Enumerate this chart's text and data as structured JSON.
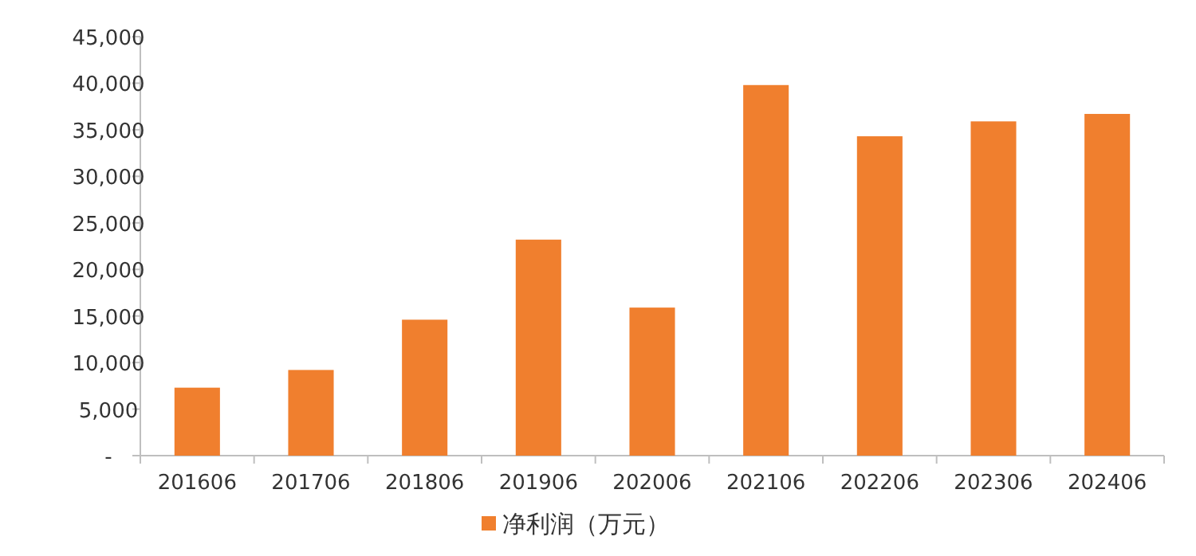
{
  "chart_data": {
    "type": "bar",
    "categories": [
      "201606",
      "201706",
      "201806",
      "201906",
      "202006",
      "202106",
      "202206",
      "202306",
      "202406"
    ],
    "series": [
      {
        "name": "净利润（万元）",
        "color": "#f07f2e",
        "values": [
          7300,
          9200,
          14600,
          23200,
          15900,
          39800,
          34300,
          35900,
          36700
        ]
      }
    ],
    "ylim": [
      0,
      45000
    ],
    "yticks": [
      {
        "value": 0,
        "label": "-"
      },
      {
        "value": 5000,
        "label": "5,000"
      },
      {
        "value": 10000,
        "label": "10,000"
      },
      {
        "value": 15000,
        "label": "15,000"
      },
      {
        "value": 20000,
        "label": "20,000"
      },
      {
        "value": 25000,
        "label": "25,000"
      },
      {
        "value": 30000,
        "label": "30,000"
      },
      {
        "value": 35000,
        "label": "35,000"
      },
      {
        "value": 40000,
        "label": "40,000"
      },
      {
        "value": 45000,
        "label": "45,000"
      }
    ],
    "legend": "bottom"
  }
}
